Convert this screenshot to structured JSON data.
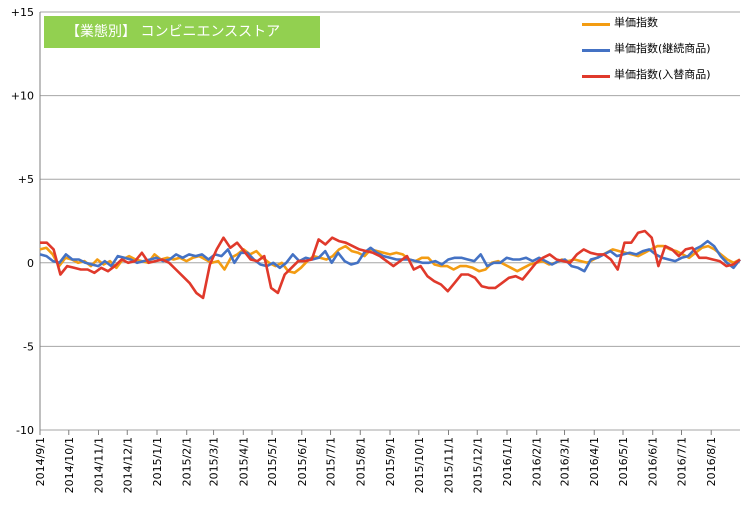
{
  "title": "【業態別】 コンビニエンスストア",
  "chart_data": {
    "type": "line",
    "title": "【業態別】 コンビニエンスストア",
    "ylim": [
      -10,
      15
    ],
    "yticks": [
      15,
      10,
      5,
      0,
      -5,
      -10
    ],
    "ytick_labels": [
      "+15",
      "+10",
      "+5",
      "0",
      "-5",
      "-10"
    ],
    "grid": true,
    "legend_position": "top-right",
    "x_tick_labels": [
      "2014/9/1",
      "2014/10/1",
      "2014/11/1",
      "2014/12/1",
      "2015/1/1",
      "2015/2/1",
      "2015/3/1",
      "2015/4/1",
      "2015/5/1",
      "2015/6/1",
      "2015/7/1",
      "2015/8/1",
      "2015/9/1",
      "2015/10/1",
      "2015/11/1",
      "2015/12/1",
      "2016/1/1",
      "2016/2/1",
      "2016/3/1",
      "2016/4/1",
      "2016/5/1",
      "2016/6/1",
      "2016/7/1",
      "2016/8/1"
    ],
    "x_start": "2014/9/1",
    "x_end": "2016/8/31",
    "series": [
      {
        "name": "単価指数",
        "color": "#f39c12",
        "values": [
          0.8,
          0.9,
          0.5,
          -0.2,
          0.3,
          0.2,
          0.0,
          0.1,
          -0.2,
          0.2,
          -0.1,
          0.1,
          -0.3,
          0.2,
          0.4,
          0.2,
          0.1,
          0.0,
          0.5,
          0.2,
          0.3,
          0.2,
          0.3,
          0.1,
          0.3,
          0.4,
          0.2,
          0.0,
          0.1,
          -0.4,
          0.3,
          0.5,
          0.8,
          0.5,
          0.7,
          0.3,
          0.0,
          -0.2,
          0.0,
          -0.5,
          -0.6,
          -0.3,
          0.1,
          0.4,
          0.3,
          0.2,
          0.4,
          0.8,
          1.0,
          0.7,
          0.6,
          0.4,
          0.8,
          0.7,
          0.6,
          0.5,
          0.6,
          0.5,
          0.2,
          0.1,
          0.3,
          0.3,
          -0.1,
          -0.2,
          -0.2,
          -0.4,
          -0.2,
          -0.2,
          -0.3,
          -0.5,
          -0.4,
          0.0,
          0.1,
          -0.1,
          -0.3,
          -0.5,
          -0.3,
          -0.1,
          0.0,
          0.1,
          -0.1,
          0.0,
          0.2,
          0.1,
          0.2,
          0.1,
          0.0,
          0.2,
          0.4,
          0.6,
          0.8,
          0.7,
          0.6,
          0.5,
          0.4,
          0.6,
          0.8,
          1.0,
          1.0,
          0.8,
          0.7,
          0.5,
          0.3,
          0.6,
          0.9,
          1.0,
          0.8,
          0.5,
          0.2,
          0.0,
          0.2
        ]
      },
      {
        "name": "単価指数(継続商品)",
        "color": "#4472c4",
        "values": [
          0.5,
          0.4,
          0.1,
          0.0,
          0.5,
          0.2,
          0.2,
          0.0,
          -0.1,
          -0.2,
          0.1,
          -0.2,
          0.4,
          0.3,
          0.2,
          0.0,
          0.1,
          0.2,
          0.3,
          0.1,
          0.2,
          0.5,
          0.3,
          0.5,
          0.4,
          0.5,
          0.2,
          0.5,
          0.4,
          0.8,
          0.0,
          0.6,
          0.6,
          0.2,
          -0.1,
          -0.2,
          0.0,
          -0.3,
          0.0,
          0.5,
          0.1,
          0.3,
          0.2,
          0.3,
          0.7,
          0.0,
          0.6,
          0.1,
          -0.1,
          0.0,
          0.6,
          0.9,
          0.6,
          0.4,
          0.3,
          0.2,
          0.2,
          0.2,
          0.1,
          0.0,
          0.0,
          0.1,
          -0.1,
          0.2,
          0.3,
          0.3,
          0.2,
          0.1,
          0.5,
          -0.2,
          0.0,
          0.0,
          0.3,
          0.2,
          0.2,
          0.3,
          0.1,
          0.3,
          0.1,
          -0.1,
          0.1,
          0.2,
          -0.2,
          -0.3,
          -0.5,
          0.2,
          0.3,
          0.5,
          0.7,
          0.4,
          0.5,
          0.6,
          0.5,
          0.7,
          0.8,
          0.5,
          0.3,
          0.2,
          0.1,
          0.3,
          0.4,
          0.8,
          1.0,
          1.3,
          1.0,
          0.4,
          0.0,
          -0.3,
          0.2
        ]
      },
      {
        "name": "単価指数(入替商品)",
        "color": "#e0392b",
        "values": [
          1.2,
          1.2,
          0.8,
          -0.7,
          -0.2,
          -0.3,
          -0.4,
          -0.4,
          -0.6,
          -0.3,
          -0.5,
          -0.2,
          0.2,
          0.0,
          0.1,
          0.6,
          0.0,
          0.1,
          0.2,
          0.0,
          -0.4,
          -0.8,
          -1.2,
          -1.8,
          -2.1,
          -0.1,
          0.8,
          1.5,
          0.9,
          1.2,
          0.7,
          0.2,
          0.1,
          0.4,
          -1.5,
          -1.8,
          -0.7,
          -0.3,
          0.1,
          0.1,
          0.2,
          1.4,
          1.1,
          1.5,
          1.3,
          1.2,
          1.0,
          0.8,
          0.7,
          0.6,
          0.4,
          0.1,
          -0.2,
          0.1,
          0.4,
          -0.4,
          -0.2,
          -0.8,
          -1.1,
          -1.3,
          -1.7,
          -1.2,
          -0.7,
          -0.7,
          -0.9,
          -1.4,
          -1.5,
          -1.5,
          -1.2,
          -0.9,
          -0.8,
          -1.0,
          -0.5,
          0.0,
          0.3,
          0.5,
          0.2,
          0.1,
          0.0,
          0.5,
          0.8,
          0.6,
          0.5,
          0.5,
          0.2,
          -0.4,
          1.2,
          1.2,
          1.8,
          1.9,
          1.5,
          -0.2,
          1.0,
          0.8,
          0.4,
          0.8,
          0.9,
          0.3,
          0.3,
          0.2,
          0.1,
          -0.2,
          -0.1,
          0.2
        ]
      }
    ]
  },
  "legend": [
    {
      "label": "単価指数",
      "color": "#f39c12"
    },
    {
      "label": "単価指数(継続商品)",
      "color": "#4472c4"
    },
    {
      "label": "単価指数(入替商品)",
      "color": "#e0392b"
    }
  ]
}
